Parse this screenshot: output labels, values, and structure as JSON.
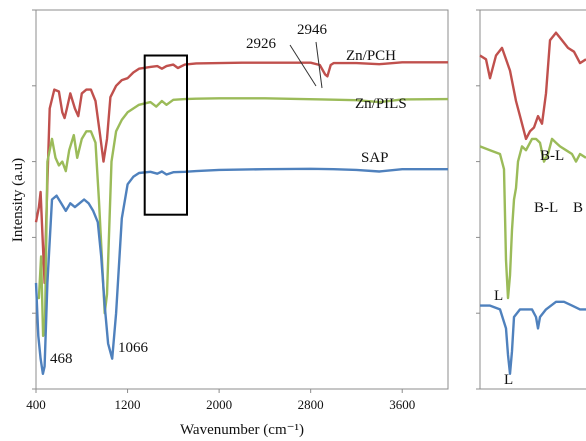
{
  "chart_data": [
    {
      "type": "line",
      "title": "",
      "xlabel": "Wavenumber (cm⁻¹)",
      "ylabel": "Intensity (a.u)",
      "xlim": [
        400,
        4000
      ],
      "y_ticks_labeled": false,
      "grid": false,
      "xticks": [
        400,
        1200,
        2000,
        2800,
        3600
      ],
      "xtick_labels": [
        "400",
        "1200",
        "2000",
        "2800",
        "3600"
      ],
      "series": [
        {
          "name": "Zn/PCH",
          "color": "#c0504d",
          "points": [
            [
              400,
              0.44
            ],
            [
              425,
              0.48
            ],
            [
              440,
              0.52
            ],
            [
              460,
              0.38
            ],
            [
              475,
              0.28
            ],
            [
              490,
              0.45
            ],
            [
              520,
              0.74
            ],
            [
              560,
              0.79
            ],
            [
              600,
              0.785
            ],
            [
              630,
              0.73
            ],
            [
              650,
              0.715
            ],
            [
              670,
              0.74
            ],
            [
              700,
              0.78
            ],
            [
              740,
              0.74
            ],
            [
              770,
              0.72
            ],
            [
              800,
              0.78
            ],
            [
              840,
              0.79
            ],
            [
              880,
              0.79
            ],
            [
              920,
              0.76
            ],
            [
              960,
              0.67
            ],
            [
              990,
              0.6
            ],
            [
              1020,
              0.66
            ],
            [
              1050,
              0.77
            ],
            [
              1100,
              0.8
            ],
            [
              1150,
              0.815
            ],
            [
              1200,
              0.82
            ],
            [
              1250,
              0.835
            ],
            [
              1300,
              0.845
            ],
            [
              1400,
              0.85
            ],
            [
              1460,
              0.852
            ],
            [
              1500,
              0.845
            ],
            [
              1540,
              0.852
            ],
            [
              1600,
              0.856
            ],
            [
              1640,
              0.847
            ],
            [
              1700,
              0.856
            ],
            [
              1800,
              0.859
            ],
            [
              2000,
              0.86
            ],
            [
              2200,
              0.861
            ],
            [
              2400,
              0.861
            ],
            [
              2600,
              0.861
            ],
            [
              2800,
              0.861
            ],
            [
              2880,
              0.855
            ],
            [
              2926,
              0.83
            ],
            [
              2946,
              0.825
            ],
            [
              2975,
              0.855
            ],
            [
              3000,
              0.86
            ],
            [
              3200,
              0.86
            ],
            [
              3400,
              0.857
            ],
            [
              3600,
              0.862
            ],
            [
              3800,
              0.862
            ],
            [
              4000,
              0.862
            ]
          ]
        },
        {
          "name": "Zn/PILS",
          "color": "#9bbb59",
          "points": [
            [
              400,
              0.24
            ],
            [
              425,
              0.24
            ],
            [
              445,
              0.35
            ],
            [
              462,
              0.14
            ],
            [
              478,
              0.15
            ],
            [
              500,
              0.6
            ],
            [
              540,
              0.66
            ],
            [
              570,
              0.61
            ],
            [
              600,
              0.59
            ],
            [
              630,
              0.6
            ],
            [
              660,
              0.575
            ],
            [
              690,
              0.63
            ],
            [
              730,
              0.67
            ],
            [
              760,
              0.61
            ],
            [
              800,
              0.66
            ],
            [
              840,
              0.68
            ],
            [
              880,
              0.68
            ],
            [
              920,
              0.65
            ],
            [
              950,
              0.5
            ],
            [
              980,
              0.32
            ],
            [
              1000,
              0.2
            ],
            [
              1020,
              0.25
            ],
            [
              1060,
              0.6
            ],
            [
              1100,
              0.68
            ],
            [
              1150,
              0.71
            ],
            [
              1200,
              0.73
            ],
            [
              1300,
              0.75
            ],
            [
              1400,
              0.757
            ],
            [
              1450,
              0.745
            ],
            [
              1500,
              0.76
            ],
            [
              1540,
              0.75
            ],
            [
              1600,
              0.763
            ],
            [
              1700,
              0.765
            ],
            [
              1800,
              0.766
            ],
            [
              2000,
              0.767
            ],
            [
              2400,
              0.767
            ],
            [
              2900,
              0.764
            ],
            [
              3200,
              0.762
            ],
            [
              3400,
              0.757
            ],
            [
              3600,
              0.764
            ],
            [
              4000,
              0.765
            ]
          ]
        },
        {
          "name": "SAP",
          "color": "#4f81bd",
          "points": [
            [
              400,
              0.28
            ],
            [
              420,
              0.14
            ],
            [
              440,
              0.08
            ],
            [
              460,
              0.04
            ],
            [
              475,
              0.06
            ],
            [
              500,
              0.28
            ],
            [
              540,
              0.5
            ],
            [
              580,
              0.51
            ],
            [
              620,
              0.49
            ],
            [
              660,
              0.47
            ],
            [
              700,
              0.49
            ],
            [
              740,
              0.48
            ],
            [
              780,
              0.49
            ],
            [
              820,
              0.5
            ],
            [
              860,
              0.49
            ],
            [
              900,
              0.47
            ],
            [
              940,
              0.44
            ],
            [
              970,
              0.35
            ],
            [
              1000,
              0.22
            ],
            [
              1030,
              0.12
            ],
            [
              1066,
              0.08
            ],
            [
              1100,
              0.2
            ],
            [
              1150,
              0.45
            ],
            [
              1200,
              0.54
            ],
            [
              1250,
              0.56
            ],
            [
              1300,
              0.57
            ],
            [
              1400,
              0.573
            ],
            [
              1460,
              0.568
            ],
            [
              1500,
              0.574
            ],
            [
              1540,
              0.566
            ],
            [
              1600,
              0.572
            ],
            [
              1700,
              0.573
            ],
            [
              1800,
              0.575
            ],
            [
              2000,
              0.578
            ],
            [
              2400,
              0.58
            ],
            [
              2800,
              0.581
            ],
            [
              3000,
              0.58
            ],
            [
              3200,
              0.578
            ],
            [
              3400,
              0.574
            ],
            [
              3600,
              0.58
            ],
            [
              4000,
              0.58
            ]
          ]
        }
      ],
      "annotations": [
        {
          "text": "468",
          "x": 468
        },
        {
          "text": "1066",
          "x": 1066
        },
        {
          "text": "2926",
          "x": 2926
        },
        {
          "text": "2946",
          "x": 2946
        }
      ],
      "highlight_box_x_range": [
        1350,
        1720
      ]
    },
    {
      "type": "line",
      "title": "",
      "xlabel": "",
      "ylabel": "",
      "panel": "inset",
      "series": [
        {
          "name": "Zn/PCH",
          "color": "#c0504d",
          "points": [
            [
              0,
              0.88
            ],
            [
              6,
              0.87
            ],
            [
              10,
              0.82
            ],
            [
              16,
              0.88
            ],
            [
              22,
              0.9
            ],
            [
              30,
              0.84
            ],
            [
              36,
              0.76
            ],
            [
              40,
              0.72
            ],
            [
              46,
              0.66
            ],
            [
              50,
              0.68
            ],
            [
              54,
              0.69
            ],
            [
              58,
              0.72
            ],
            [
              62,
              0.7
            ],
            [
              66,
              0.78
            ],
            [
              70,
              0.92
            ],
            [
              76,
              0.94
            ],
            [
              82,
              0.92
            ],
            [
              88,
              0.9
            ],
            [
              94,
              0.89
            ],
            [
              100,
              0.86
            ],
            [
              106,
              0.87
            ]
          ]
        },
        {
          "name": "Zn/PILS",
          "color": "#9bbb59",
          "points": [
            [
              0,
              0.64
            ],
            [
              10,
              0.63
            ],
            [
              20,
              0.62
            ],
            [
              24,
              0.58
            ],
            [
              26,
              0.34
            ],
            [
              28,
              0.24
            ],
            [
              30,
              0.3
            ],
            [
              32,
              0.42
            ],
            [
              34,
              0.5
            ],
            [
              36,
              0.53
            ],
            [
              38,
              0.6
            ],
            [
              42,
              0.64
            ],
            [
              46,
              0.63
            ],
            [
              52,
              0.66
            ],
            [
              56,
              0.66
            ],
            [
              60,
              0.65
            ],
            [
              64,
              0.6
            ],
            [
              68,
              0.62
            ],
            [
              72,
              0.66
            ],
            [
              76,
              0.65
            ],
            [
              80,
              0.64
            ],
            [
              86,
              0.63
            ],
            [
              92,
              0.62
            ],
            [
              96,
              0.6
            ],
            [
              100,
              0.62
            ],
            [
              106,
              0.61
            ]
          ]
        },
        {
          "name": "SAP",
          "color": "#4f81bd",
          "points": [
            [
              0,
              0.22
            ],
            [
              10,
              0.22
            ],
            [
              20,
              0.21
            ],
            [
              26,
              0.16
            ],
            [
              28,
              0.09
            ],
            [
              30,
              0.04
            ],
            [
              32,
              0.1
            ],
            [
              34,
              0.19
            ],
            [
              40,
              0.21
            ],
            [
              52,
              0.21
            ],
            [
              56,
              0.19
            ],
            [
              58,
              0.16
            ],
            [
              60,
              0.19
            ],
            [
              66,
              0.21
            ],
            [
              76,
              0.23
            ],
            [
              84,
              0.23
            ],
            [
              92,
              0.22
            ],
            [
              100,
              0.21
            ],
            [
              106,
              0.21
            ]
          ]
        }
      ],
      "annotations": [
        {
          "text": "B-L",
          "series": "Zn/PCH"
        },
        {
          "text": "B-L",
          "series": "Zn/PILS"
        },
        {
          "text": "B",
          "series": "Zn/PILS"
        },
        {
          "text": "L",
          "series": "Zn/PILS"
        },
        {
          "text": "L",
          "series": "SAP"
        }
      ]
    }
  ]
}
